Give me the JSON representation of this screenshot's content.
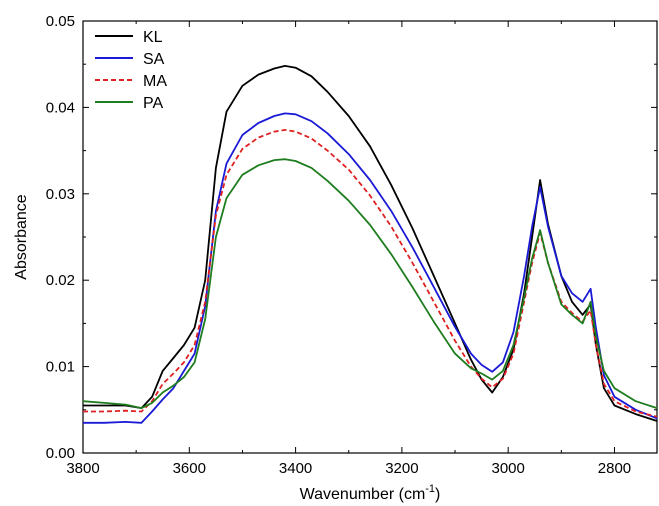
{
  "chart_data": {
    "type": "line",
    "title": "",
    "xlabel": "Wavenumber (cm",
    "xlabel_sup": "-1",
    "xlabel_close": ")",
    "ylabel": "Absorbance",
    "xlim": [
      3800,
      2720
    ],
    "ylim": [
      0.0,
      0.05
    ],
    "x_reversed": true,
    "x_ticks": [
      3800,
      3600,
      3400,
      3200,
      3000,
      2800
    ],
    "x_tick_labels": [
      "3800",
      "3600",
      "3400",
      "3200",
      "3000",
      "2800"
    ],
    "y_ticks": [
      0.0,
      0.01,
      0.02,
      0.03,
      0.04,
      0.05
    ],
    "y_tick_labels": [
      "0.00",
      "0.01",
      "0.02",
      "0.03",
      "0.04",
      "0.05"
    ],
    "grid": false,
    "legend_position": "top-left",
    "series": [
      {
        "name": "KL",
        "color": "#000000",
        "dash": "solid",
        "points": [
          [
            3800,
            0.0055
          ],
          [
            3760,
            0.0055
          ],
          [
            3720,
            0.0055
          ],
          [
            3690,
            0.0052
          ],
          [
            3670,
            0.0065
          ],
          [
            3650,
            0.0095
          ],
          [
            3630,
            0.011
          ],
          [
            3610,
            0.0125
          ],
          [
            3590,
            0.0145
          ],
          [
            3570,
            0.02
          ],
          [
            3550,
            0.033
          ],
          [
            3530,
            0.0395
          ],
          [
            3500,
            0.0425
          ],
          [
            3470,
            0.0438
          ],
          [
            3440,
            0.0445
          ],
          [
            3420,
            0.0448
          ],
          [
            3400,
            0.0446
          ],
          [
            3370,
            0.0436
          ],
          [
            3340,
            0.0418
          ],
          [
            3300,
            0.039
          ],
          [
            3260,
            0.0355
          ],
          [
            3220,
            0.031
          ],
          [
            3180,
            0.026
          ],
          [
            3140,
            0.0205
          ],
          [
            3100,
            0.015
          ],
          [
            3070,
            0.0108
          ],
          [
            3050,
            0.0085
          ],
          [
            3030,
            0.007
          ],
          [
            3010,
            0.0088
          ],
          [
            2990,
            0.012
          ],
          [
            2970,
            0.0185
          ],
          [
            2955,
            0.025
          ],
          [
            2940,
            0.0316
          ],
          [
            2925,
            0.0265
          ],
          [
            2900,
            0.0205
          ],
          [
            2880,
            0.0175
          ],
          [
            2860,
            0.016
          ],
          [
            2845,
            0.0172
          ],
          [
            2835,
            0.0125
          ],
          [
            2820,
            0.0075
          ],
          [
            2800,
            0.0055
          ],
          [
            2760,
            0.0045
          ],
          [
            2720,
            0.0037
          ]
        ]
      },
      {
        "name": "SA",
        "color": "#1a1ad6",
        "dash": "solid",
        "points": [
          [
            3800,
            0.0035
          ],
          [
            3760,
            0.0035
          ],
          [
            3720,
            0.0036
          ],
          [
            3690,
            0.0035
          ],
          [
            3670,
            0.0048
          ],
          [
            3650,
            0.0062
          ],
          [
            3630,
            0.0075
          ],
          [
            3610,
            0.0095
          ],
          [
            3590,
            0.0115
          ],
          [
            3570,
            0.017
          ],
          [
            3550,
            0.028
          ],
          [
            3530,
            0.0335
          ],
          [
            3500,
            0.0368
          ],
          [
            3470,
            0.0382
          ],
          [
            3440,
            0.039
          ],
          [
            3420,
            0.0393
          ],
          [
            3400,
            0.0392
          ],
          [
            3370,
            0.0384
          ],
          [
            3340,
            0.037
          ],
          [
            3300,
            0.0346
          ],
          [
            3260,
            0.0316
          ],
          [
            3220,
            0.028
          ],
          [
            3180,
            0.0238
          ],
          [
            3140,
            0.0192
          ],
          [
            3100,
            0.0146
          ],
          [
            3070,
            0.0115
          ],
          [
            3050,
            0.0102
          ],
          [
            3030,
            0.0094
          ],
          [
            3010,
            0.0105
          ],
          [
            2990,
            0.014
          ],
          [
            2970,
            0.0205
          ],
          [
            2955,
            0.0262
          ],
          [
            2940,
            0.0308
          ],
          [
            2925,
            0.0262
          ],
          [
            2900,
            0.0205
          ],
          [
            2880,
            0.0185
          ],
          [
            2860,
            0.0175
          ],
          [
            2845,
            0.019
          ],
          [
            2835,
            0.0145
          ],
          [
            2820,
            0.009
          ],
          [
            2800,
            0.0065
          ],
          [
            2760,
            0.005
          ],
          [
            2720,
            0.004
          ]
        ]
      },
      {
        "name": "MA",
        "color": "#e02020",
        "dash": "dashed",
        "points": [
          [
            3800,
            0.0048
          ],
          [
            3760,
            0.0048
          ],
          [
            3720,
            0.0049
          ],
          [
            3690,
            0.0048
          ],
          [
            3670,
            0.006
          ],
          [
            3650,
            0.008
          ],
          [
            3630,
            0.0092
          ],
          [
            3610,
            0.0105
          ],
          [
            3590,
            0.0125
          ],
          [
            3570,
            0.0175
          ],
          [
            3550,
            0.0275
          ],
          [
            3530,
            0.0322
          ],
          [
            3500,
            0.0352
          ],
          [
            3470,
            0.0365
          ],
          [
            3440,
            0.0372
          ],
          [
            3420,
            0.0374
          ],
          [
            3400,
            0.0372
          ],
          [
            3370,
            0.0364
          ],
          [
            3340,
            0.035
          ],
          [
            3300,
            0.0328
          ],
          [
            3260,
            0.0298
          ],
          [
            3220,
            0.0262
          ],
          [
            3180,
            0.022
          ],
          [
            3140,
            0.0175
          ],
          [
            3100,
            0.013
          ],
          [
            3070,
            0.01
          ],
          [
            3050,
            0.0086
          ],
          [
            3030,
            0.0076
          ],
          [
            3010,
            0.0086
          ],
          [
            2990,
            0.0115
          ],
          [
            2970,
            0.0175
          ],
          [
            2955,
            0.022
          ],
          [
            2940,
            0.0255
          ],
          [
            2925,
            0.022
          ],
          [
            2900,
            0.0175
          ],
          [
            2880,
            0.0162
          ],
          [
            2860,
            0.0152
          ],
          [
            2845,
            0.0165
          ],
          [
            2835,
            0.0125
          ],
          [
            2820,
            0.008
          ],
          [
            2800,
            0.006
          ],
          [
            2760,
            0.0048
          ],
          [
            2720,
            0.0042
          ]
        ]
      },
      {
        "name": "PA",
        "color": "#1e7d1e",
        "dash": "solid",
        "points": [
          [
            3800,
            0.006
          ],
          [
            3760,
            0.0058
          ],
          [
            3720,
            0.0056
          ],
          [
            3690,
            0.0052
          ],
          [
            3670,
            0.0058
          ],
          [
            3650,
            0.007
          ],
          [
            3630,
            0.0078
          ],
          [
            3610,
            0.0088
          ],
          [
            3590,
            0.0105
          ],
          [
            3570,
            0.0155
          ],
          [
            3550,
            0.025
          ],
          [
            3530,
            0.0295
          ],
          [
            3500,
            0.0322
          ],
          [
            3470,
            0.0333
          ],
          [
            3440,
            0.0339
          ],
          [
            3420,
            0.034
          ],
          [
            3400,
            0.0338
          ],
          [
            3370,
            0.033
          ],
          [
            3340,
            0.0315
          ],
          [
            3300,
            0.0292
          ],
          [
            3260,
            0.0264
          ],
          [
            3220,
            0.023
          ],
          [
            3180,
            0.0192
          ],
          [
            3140,
            0.0152
          ],
          [
            3100,
            0.0115
          ],
          [
            3070,
            0.0098
          ],
          [
            3050,
            0.0092
          ],
          [
            3030,
            0.0085
          ],
          [
            3010,
            0.0095
          ],
          [
            2990,
            0.0125
          ],
          [
            2970,
            0.018
          ],
          [
            2955,
            0.0225
          ],
          [
            2940,
            0.0258
          ],
          [
            2925,
            0.022
          ],
          [
            2900,
            0.0172
          ],
          [
            2880,
            0.016
          ],
          [
            2860,
            0.015
          ],
          [
            2845,
            0.0175
          ],
          [
            2835,
            0.0135
          ],
          [
            2820,
            0.0095
          ],
          [
            2800,
            0.0075
          ],
          [
            2760,
            0.006
          ],
          [
            2720,
            0.0052
          ]
        ]
      }
    ]
  }
}
